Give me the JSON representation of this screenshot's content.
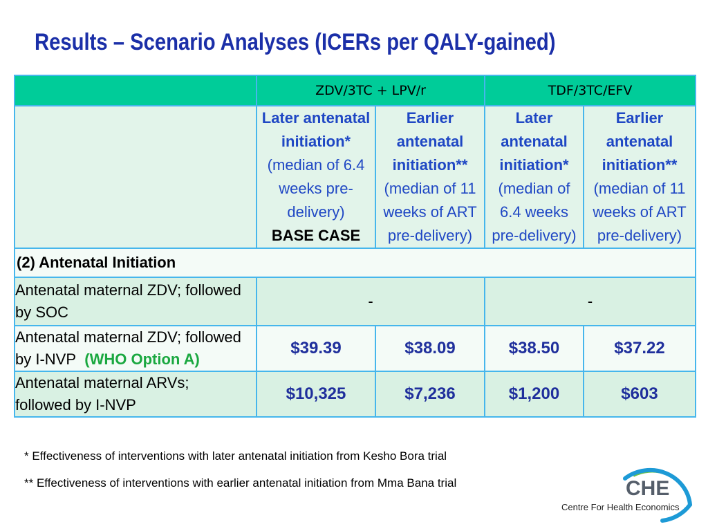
{
  "slide": {
    "title": "Results – Scenario Analyses (ICERs per QALY-gained)"
  },
  "table": {
    "group_headers": [
      "ZDV/3TC + LPV/r",
      "TDF/3TC/EFV"
    ],
    "sub_headers": [
      {
        "lines_bold": [
          "Later antenatal",
          "initiation*"
        ],
        "lines": [
          "(median of 6.4",
          "weeks pre-",
          "delivery)"
        ],
        "base_case": "BASE CASE"
      },
      {
        "lines_bold": [
          "Earlier",
          "antenatal",
          "initiation**"
        ],
        "lines": [
          "(median of 11",
          "weeks of ART",
          "pre-delivery)"
        ],
        "base_case": ""
      },
      {
        "lines_bold": [
          "Later",
          "antenatal",
          "initiation*"
        ],
        "lines": [
          "(median of",
          "6.4 weeks",
          "pre-delivery)"
        ],
        "base_case": ""
      },
      {
        "lines_bold": [
          "Earlier",
          "antenatal",
          "initiation**"
        ],
        "lines": [
          "(median of 11",
          "weeks of ART",
          "pre-delivery)"
        ],
        "base_case": ""
      }
    ],
    "section_label": "(2) Antenatal Initiation",
    "rows": [
      {
        "label_line1": "Antenatal maternal ZDV; followed",
        "label_line2": "by SOC",
        "values": [
          "-",
          "-"
        ]
      },
      {
        "label_line1": "Antenatal maternal ZDV; followed",
        "label_line2": "by I-NVP",
        "label_highlight": "(WHO Option A)",
        "values": [
          "$39.39",
          "$38.09",
          "$38.50",
          "$37.22"
        ]
      },
      {
        "label_line1": "Antenatal maternal ARVs;",
        "label_line2": "followed by I-NVP",
        "values": [
          "$10,325",
          "$7,236",
          "$1,200",
          "$603"
        ]
      }
    ]
  },
  "chart_data": {
    "type": "table",
    "title": "Results – Scenario Analyses (ICERs per QALY-gained)",
    "columns": [
      "ZDV/3TC + LPV/r – Later antenatal initiation* (median of 6.4 weeks pre-delivery) BASE CASE",
      "ZDV/3TC + LPV/r – Earlier antenatal initiation** (median of 11 weeks of ART pre-delivery)",
      "TDF/3TC/EFV – Later antenatal initiation* (median of 6.4 weeks pre-delivery)",
      "TDF/3TC/EFV – Earlier antenatal initiation** (median of 11 weeks of ART pre-delivery)"
    ],
    "section": "(2) Antenatal Initiation",
    "rows": [
      {
        "label": "Antenatal maternal ZDV; followed by SOC",
        "values": [
          "-",
          "-",
          "-",
          "-"
        ]
      },
      {
        "label": "Antenatal maternal ZDV; followed by I-NVP (WHO Option A)",
        "values": [
          39.39,
          38.09,
          38.5,
          37.22
        ]
      },
      {
        "label": "Antenatal maternal ARVs; followed by I-NVP",
        "values": [
          10325,
          7236,
          1200,
          603
        ]
      }
    ],
    "unit": "$"
  },
  "footnotes": [
    "* Effectiveness of interventions with later antenatal initiation from Kesho Bora trial",
    "** Effectiveness of interventions with earlier antenatal initiation from Mma Bana trial"
  ],
  "logo": {
    "abbr": "CHE",
    "name": "Centre For Health Economics",
    "colors": {
      "arc_blue": "#1d9ad6",
      "arc_green": "#6cc24a",
      "text_gray": "#555e6a"
    }
  },
  "colors": {
    "title": "#1b2fa8",
    "header_bg": "#00cc99",
    "cell_bg": "#d9f1e3",
    "border": "#46b6ec",
    "value_text": "#1f2f9c",
    "highlight_green": "#1aa840"
  }
}
